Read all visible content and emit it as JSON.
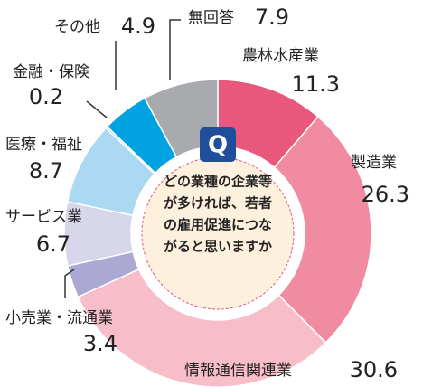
{
  "chart_data": {
    "type": "donut",
    "badge": "Q",
    "center_text": [
      "どの業種の企業等",
      "が多ければ、若者",
      "の雇用促進につな",
      "がると思いますか"
    ],
    "categories": [
      "農林水産業",
      "製造業",
      "情報通信関連業",
      "小売業・流通業",
      "サービス業",
      "医療・福祉",
      "金融・保険",
      "その他",
      "無回答"
    ],
    "values": [
      11.3,
      26.3,
      30.6,
      3.4,
      6.7,
      8.7,
      0.2,
      4.9,
      7.9
    ],
    "colors": [
      "#e9587c",
      "#f08ba1",
      "#f7bdc8",
      "#aca8d4",
      "#d7d6eb",
      "#aad9f1",
      "#6fc6ec",
      "#00a2e1",
      "#a8aaad"
    ]
  }
}
